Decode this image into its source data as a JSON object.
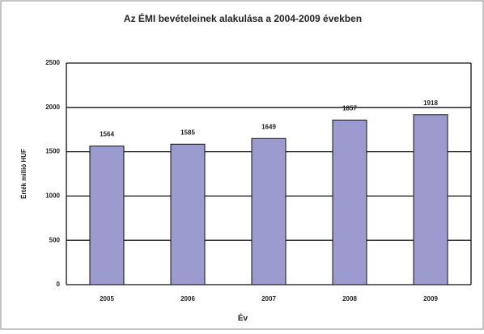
{
  "chart_data": {
    "type": "bar",
    "title": "Az ÉMI bevételeinek alakulása a 2004-2009 években",
    "x_label": "Év",
    "y_label": "Érték millió HUF",
    "categories": [
      "2005",
      "2006",
      "2007",
      "2008",
      "2009"
    ],
    "values": [
      1564,
      1585,
      1649,
      1857,
      1918
    ],
    "color": "#9b9bd0",
    "ylim": [
      0,
      2500
    ],
    "yticks": [
      0,
      500,
      1000,
      1500,
      2000,
      2500
    ],
    "grid": true
  }
}
